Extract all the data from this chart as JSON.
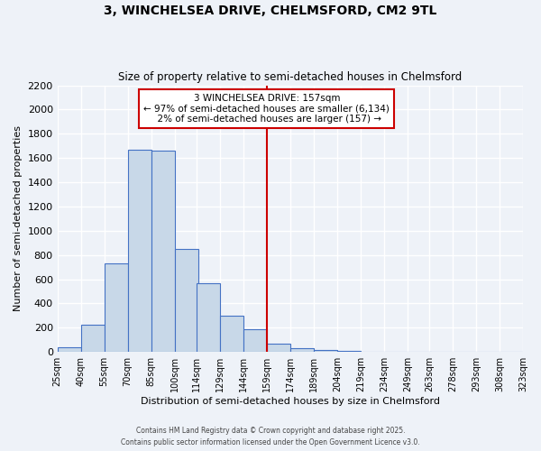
{
  "title_line1": "3, WINCHELSEA DRIVE, CHELMSFORD, CM2 9TL",
  "title_line2": "Size of property relative to semi-detached houses in Chelmsford",
  "xlabel": "Distribution of semi-detached houses by size in Chelmsford",
  "ylabel": "Number of semi-detached properties",
  "bar_left_edges": [
    25,
    40,
    55,
    70,
    85,
    100,
    114,
    129,
    144,
    159,
    174,
    189,
    204,
    219,
    234,
    249,
    263,
    278,
    293,
    308
  ],
  "bar_widths": [
    15,
    15,
    15,
    15,
    15,
    15,
    15,
    15,
    15,
    15,
    15,
    15,
    15,
    15,
    15,
    15,
    15,
    15,
    15,
    15
  ],
  "bar_heights": [
    40,
    225,
    730,
    1670,
    1660,
    850,
    570,
    300,
    185,
    65,
    35,
    20,
    10,
    5,
    0,
    0,
    0,
    0,
    0,
    0
  ],
  "bar_color": "#c8d8e8",
  "bar_edgecolor": "#4472c4",
  "vline_x": 159,
  "vline_color": "#cc0000",
  "annotation_line1": "3 WINCHELSEA DRIVE: 157sqm",
  "annotation_line2": "← 97% of semi-detached houses are smaller (6,134)",
  "annotation_line3": "  2% of semi-detached houses are larger (157) →",
  "annotation_box_color": "#ffffff",
  "annotation_border_color": "#cc0000",
  "xlim": [
    25,
    323
  ],
  "ylim": [
    0,
    2200
  ],
  "yticks": [
    0,
    200,
    400,
    600,
    800,
    1000,
    1200,
    1400,
    1600,
    1800,
    2000,
    2200
  ],
  "xtick_labels": [
    "25sqm",
    "40sqm",
    "55sqm",
    "70sqm",
    "85sqm",
    "100sqm",
    "114sqm",
    "129sqm",
    "144sqm",
    "159sqm",
    "174sqm",
    "189sqm",
    "204sqm",
    "219sqm",
    "234sqm",
    "249sqm",
    "263sqm",
    "278sqm",
    "293sqm",
    "308sqm",
    "323sqm"
  ],
  "xtick_positions": [
    25,
    40,
    55,
    70,
    85,
    100,
    114,
    129,
    144,
    159,
    174,
    189,
    204,
    219,
    234,
    249,
    263,
    278,
    293,
    308,
    323
  ],
  "background_color": "#eef2f8",
  "grid_color": "#ffffff",
  "footer_line1": "Contains HM Land Registry data © Crown copyright and database right 2025.",
  "footer_line2": "Contains public sector information licensed under the Open Government Licence v3.0."
}
